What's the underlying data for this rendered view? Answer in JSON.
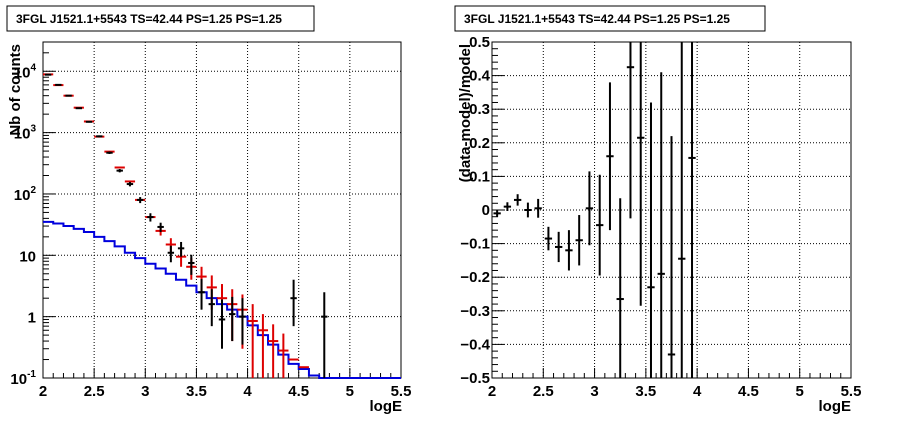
{
  "left_panel": {
    "title": "3FGL J1521.1+5543 TS=42.44 PS=1.25 PS=1.25",
    "xlabel": "logE",
    "ylabel": "Nb of counts",
    "xticks": [
      "2",
      "2.5",
      "3",
      "3.5",
      "4",
      "4.5",
      "5",
      "5.5"
    ],
    "yticks": [
      {
        "base": "10",
        "exp": "-1"
      },
      {
        "base": "1",
        "exp": ""
      },
      {
        "base": "10",
        "exp": ""
      },
      {
        "base": "10",
        "exp": "2"
      },
      {
        "base": "10",
        "exp": "3"
      },
      {
        "base": "10",
        "exp": "4"
      }
    ]
  },
  "right_panel": {
    "title": "3FGL J1521.1+5543 TS=42.44 PS=1.25 PS=1.25",
    "xlabel": "logE",
    "ylabel": "(data-model)/model",
    "xticks": [
      "2",
      "2.5",
      "3",
      "3.5",
      "4",
      "4.5",
      "5",
      "5.5"
    ],
    "yticks": [
      "−0.5",
      "−0.4",
      "−0.3",
      "−0.2",
      "−0.1",
      "0",
      "0.1",
      "0.2",
      "0.3",
      "0.4",
      "0.5"
    ]
  },
  "colors": {
    "data": "#000000",
    "model_total": "#dd0000",
    "source_model": "#0000dd",
    "grid": "#000000"
  },
  "chart_data": [
    {
      "type": "line",
      "scale": "log-y",
      "title": "3FGL J1521.1+5543 TS=42.44 PS=1.25 PS=1.25",
      "xlabel": "logE",
      "ylabel": "Nb of counts",
      "xlim": [
        2,
        5.5
      ],
      "ylim": [
        0.1,
        30000
      ],
      "grid": true,
      "bin_width": 0.1,
      "series": [
        {
          "role": "data (black points with error bars)",
          "x": [
            2.05,
            2.15,
            2.25,
            2.35,
            2.45,
            2.55,
            2.65,
            2.75,
            2.85,
            2.95,
            3.05,
            3.15,
            3.25,
            3.35,
            3.45,
            3.55,
            3.65,
            3.75,
            3.85,
            3.95,
            4.05,
            4.15,
            4.25,
            4.35,
            4.45,
            4.55,
            4.65,
            4.75
          ],
          "y": [
            8800,
            6000,
            4000,
            2500,
            1500,
            870,
            470,
            240,
            145,
            80,
            42,
            29,
            11,
            13,
            7.5,
            2.5,
            1.6,
            0.9,
            1.1,
            1.0,
            0,
            0,
            0,
            0,
            2.0,
            0,
            0,
            1.0
          ],
          "yerr_low": [
            90,
            75,
            60,
            50,
            40,
            30,
            22,
            15,
            12,
            9,
            6.5,
            5,
            3.3,
            3.5,
            2.7,
            1.2,
            0.9,
            0.6,
            0.7,
            0.65,
            0,
            0,
            0,
            0,
            1.3,
            0,
            0,
            0.9
          ],
          "yerr_high": [
            90,
            75,
            60,
            50,
            40,
            30,
            22,
            15,
            12,
            9,
            6.5,
            5,
            3.3,
            3.5,
            2.7,
            1.6,
            1.2,
            1.0,
            1.0,
            1.0,
            0,
            0,
            0,
            0,
            2.0,
            0,
            0,
            1.5
          ]
        },
        {
          "role": "total model (red)",
          "x": [
            2.05,
            2.15,
            2.25,
            2.35,
            2.45,
            2.55,
            2.65,
            2.75,
            2.85,
            2.95,
            3.05,
            3.15,
            3.25,
            3.35,
            3.45,
            3.55,
            3.65,
            3.75,
            3.85,
            3.95,
            4.05,
            4.15,
            4.25,
            4.35,
            4.45,
            4.55
          ],
          "y": [
            8900,
            5950,
            4000,
            2550,
            1520,
            860,
            490,
            270,
            160,
            80,
            42,
            25,
            15,
            9.5,
            6.5,
            4.5,
            3.0,
            2.0,
            1.6,
            1.3,
            0.85,
            0.6,
            0.4,
            0.28,
            0.2,
            0.15
          ],
          "yerr_low": [
            0,
            0,
            0,
            0,
            0,
            0,
            0,
            0,
            0,
            0,
            0,
            4,
            4,
            3,
            2.5,
            2.0,
            1.7,
            1.4,
            1.2,
            1.0,
            0.75,
            0.5,
            0.35,
            0.25,
            0,
            0
          ],
          "yerr_high": [
            0,
            0,
            0,
            0,
            0,
            0,
            0,
            0,
            0,
            0,
            0,
            4,
            4,
            3,
            2.5,
            2.0,
            1.7,
            1.4,
            1.2,
            1.0,
            0.75,
            0.5,
            0.35,
            0.25,
            0,
            0
          ]
        },
        {
          "role": "source model (blue step)",
          "x": [
            2.0,
            2.1,
            2.2,
            2.3,
            2.4,
            2.5,
            2.6,
            2.7,
            2.8,
            2.9,
            3.0,
            3.1,
            3.2,
            3.3,
            3.4,
            3.5,
            3.6,
            3.7,
            3.8,
            3.9,
            4.0,
            4.1,
            4.2,
            4.3,
            4.4,
            4.5,
            4.6,
            4.7,
            4.8,
            5.5
          ],
          "y": [
            35,
            33,
            30,
            27,
            24,
            20,
            17,
            14,
            11,
            9,
            7.3,
            6.1,
            5.0,
            4.0,
            3.2,
            2.5,
            2.0,
            1.6,
            1.3,
            1.0,
            0.72,
            0.5,
            0.35,
            0.24,
            0.17,
            0.14,
            0.11,
            0.1,
            0.1,
            0.1
          ]
        }
      ]
    },
    {
      "type": "scatter",
      "title": "3FGL J1521.1+5543 TS=42.44 PS=1.25 PS=1.25",
      "xlabel": "logE",
      "ylabel": "(data-model)/model",
      "xlim": [
        2,
        5.5
      ],
      "ylim": [
        -0.5,
        0.5
      ],
      "grid": true,
      "bin_width": 0.1,
      "series": [
        {
          "role": "residuals (black points with error bars)",
          "x": [
            2.05,
            2.15,
            2.25,
            2.35,
            2.45,
            2.55,
            2.65,
            2.75,
            2.85,
            2.95,
            3.05,
            3.15,
            3.25,
            3.35,
            3.45,
            3.55,
            3.65,
            3.75,
            3.85,
            3.95
          ],
          "y": [
            -0.01,
            0.01,
            0.03,
            0.0,
            0.005,
            -0.085,
            -0.11,
            -0.12,
            -0.09,
            0.005,
            -0.045,
            0.16,
            -0.265,
            0.425,
            0.215,
            -0.23,
            -0.19,
            -0.43,
            -0.145,
            0.155
          ],
          "yerr": [
            0.01,
            0.013,
            0.017,
            0.022,
            0.028,
            0.035,
            0.045,
            0.06,
            0.075,
            0.11,
            0.15,
            0.22,
            0.3,
            0.45,
            0.5,
            0.55,
            0.6,
            0.65,
            0.7,
            0.75
          ]
        }
      ]
    }
  ]
}
